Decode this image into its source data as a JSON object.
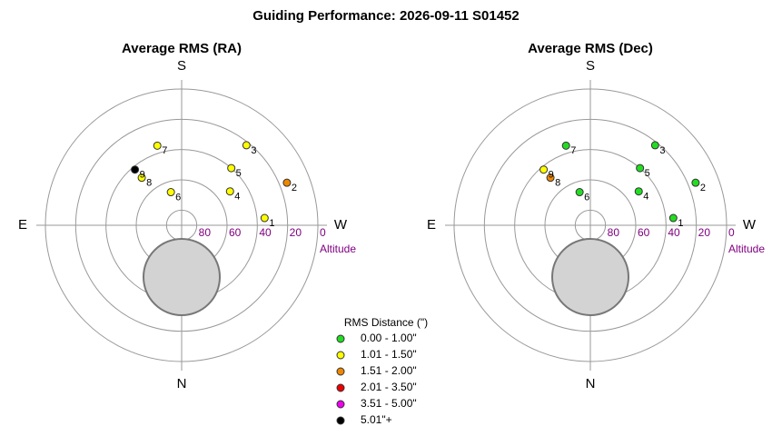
{
  "title": "Guiding Performance: 2026-09-11 S01452",
  "legend": {
    "title": "RMS Distance (\")",
    "items": [
      {
        "label": "0.00 - 1.00\"",
        "color": "#22dd22",
        "max": 1.0
      },
      {
        "label": "1.01 - 1.50\"",
        "color": "#ffff00",
        "max": 1.5
      },
      {
        "label": "1.51 - 2.00\"",
        "color": "#ee8800",
        "max": 2.0
      },
      {
        "label": "2.01 - 3.50\"",
        "color": "#ee0000",
        "max": 3.5
      },
      {
        "label": "3.51 - 5.00\"",
        "color": "#ee00ee",
        "max": 5.0
      },
      {
        "label": "5.01\"+",
        "color": "#000000"
      }
    ]
  },
  "chart_data": [
    {
      "type": "polar",
      "title": "Average RMS (RA)",
      "rlim": [
        90,
        0
      ],
      "rticks": [
        80,
        60,
        40,
        20,
        0
      ],
      "r_label": "Altitude",
      "azimuth_ticks": [
        {
          "value": 180,
          "label": "S"
        },
        {
          "value": 270,
          "label": "W"
        },
        {
          "value": 0,
          "label": "N"
        },
        {
          "value": 90,
          "label": "E"
        }
      ],
      "points": [
        {
          "label": "1",
          "azimuth": 265,
          "altitude": 35,
          "rms": 1.3
        },
        {
          "label": "2",
          "azimuth": 248,
          "altitude": 15,
          "rms": 1.8
        },
        {
          "label": "3",
          "azimuth": 219,
          "altitude": 22,
          "rms": 1.2
        },
        {
          "label": "4",
          "azimuth": 235,
          "altitude": 51,
          "rms": 1.1
        },
        {
          "label": "5",
          "azimuth": 221,
          "altitude": 40,
          "rms": 1.3
        },
        {
          "label": "6",
          "azimuth": 162,
          "altitude": 67,
          "rms": 1.2
        },
        {
          "label": "7",
          "azimuth": 163,
          "altitude": 35,
          "rms": 1.4
        },
        {
          "label": "8",
          "azimuth": 140,
          "altitude": 49,
          "rms": 1.3
        },
        {
          "label": "9",
          "azimuth": 140,
          "altitude": 42,
          "rms": 5.5
        }
      ]
    },
    {
      "type": "polar",
      "title": "Average RMS (Dec)",
      "rlim": [
        90,
        0
      ],
      "rticks": [
        80,
        60,
        40,
        20,
        0
      ],
      "r_label": "Altitude",
      "azimuth_ticks": [
        {
          "value": 180,
          "label": "S"
        },
        {
          "value": 270,
          "label": "W"
        },
        {
          "value": 0,
          "label": "N"
        },
        {
          "value": 90,
          "label": "E"
        }
      ],
      "points": [
        {
          "label": "1",
          "azimuth": 265,
          "altitude": 35,
          "rms": 0.8
        },
        {
          "label": "2",
          "azimuth": 248,
          "altitude": 15,
          "rms": 0.7
        },
        {
          "label": "3",
          "azimuth": 219,
          "altitude": 22,
          "rms": 0.8
        },
        {
          "label": "4",
          "azimuth": 235,
          "altitude": 51,
          "rms": 0.6
        },
        {
          "label": "5",
          "azimuth": 221,
          "altitude": 40,
          "rms": 0.7
        },
        {
          "label": "6",
          "azimuth": 162,
          "altitude": 67,
          "rms": 0.8
        },
        {
          "label": "7",
          "azimuth": 163,
          "altitude": 35,
          "rms": 0.9
        },
        {
          "label": "8",
          "azimuth": 140,
          "altitude": 49,
          "rms": 1.7
        },
        {
          "label": "9",
          "azimuth": 140,
          "altitude": 42,
          "rms": 1.3
        }
      ]
    }
  ]
}
